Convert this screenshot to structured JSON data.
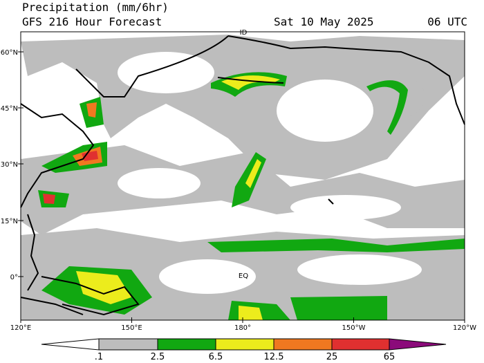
{
  "header": {
    "title": "Precipitation (mm/6hr)",
    "subtitle": "GFS 216 Hour Forecast",
    "date": "Sat 10 May 2025",
    "time": "06 UTC"
  },
  "map": {
    "lat_labels": [
      "60°N",
      "45°N",
      "30°N",
      "15°N",
      "0°"
    ],
    "lon_labels": [
      "120°E",
      "150°E",
      "180°",
      "150°W",
      "120°W"
    ],
    "annotations": [
      "ID",
      "EQ"
    ]
  },
  "colorbar": {
    "labels": [
      ".1",
      "2.5",
      "6.5",
      "12.5",
      "25",
      "65"
    ]
  }
}
